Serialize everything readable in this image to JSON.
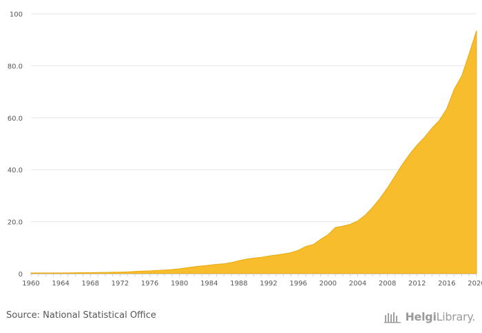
{
  "chart_data": {
    "type": "area",
    "title": "",
    "xlabel": "",
    "ylabel": "",
    "ylim": [
      0,
      100
    ],
    "yticks": [
      0,
      20,
      40,
      60,
      80,
      100
    ],
    "ytick_labels": [
      "0",
      "20.0",
      "40.0",
      "60.0",
      "80.0",
      "100"
    ],
    "xlim": [
      1960,
      2020
    ],
    "xticks": [
      1960,
      1964,
      1968,
      1972,
      1976,
      1980,
      1984,
      1988,
      1992,
      1996,
      2000,
      2004,
      2008,
      2012,
      2016,
      2020
    ],
    "grid": "horizontal",
    "fill_color": "#F8BD2C",
    "x": [
      1960,
      1961,
      1962,
      1963,
      1964,
      1965,
      1966,
      1967,
      1968,
      1969,
      1970,
      1971,
      1972,
      1973,
      1974,
      1975,
      1976,
      1977,
      1978,
      1979,
      1980,
      1981,
      1982,
      1983,
      1984,
      1985,
      1986,
      1987,
      1988,
      1989,
      1990,
      1991,
      1992,
      1993,
      1994,
      1995,
      1996,
      1997,
      1998,
      1999,
      2000,
      2001,
      2002,
      2003,
      2004,
      2005,
      2006,
      2007,
      2008,
      2009,
      2010,
      2011,
      2012,
      2013,
      2014,
      2015,
      2016,
      2017,
      2018,
      2019,
      2020
    ],
    "values": [
      0.3,
      0.3,
      0.3,
      0.3,
      0.3,
      0.3,
      0.35,
      0.4,
      0.4,
      0.45,
      0.5,
      0.55,
      0.6,
      0.7,
      0.85,
      1.0,
      1.1,
      1.25,
      1.4,
      1.6,
      1.9,
      2.3,
      2.7,
      3.0,
      3.3,
      3.6,
      3.8,
      4.3,
      5.0,
      5.6,
      6.0,
      6.3,
      6.8,
      7.2,
      7.6,
      8.1,
      9.0,
      10.5,
      11.2,
      13.2,
      15.0,
      17.8,
      18.3,
      19.0,
      20.3,
      22.5,
      25.5,
      29.0,
      33.0,
      37.5,
      42.0,
      46.0,
      49.5,
      52.5,
      56.0,
      59.0,
      63.5,
      71.0,
      76.0,
      84.5,
      93.5
    ]
  },
  "footer": {
    "source": "Source: National Statistical Office",
    "brand_bold": "Helgi",
    "brand_rest": "Library."
  }
}
